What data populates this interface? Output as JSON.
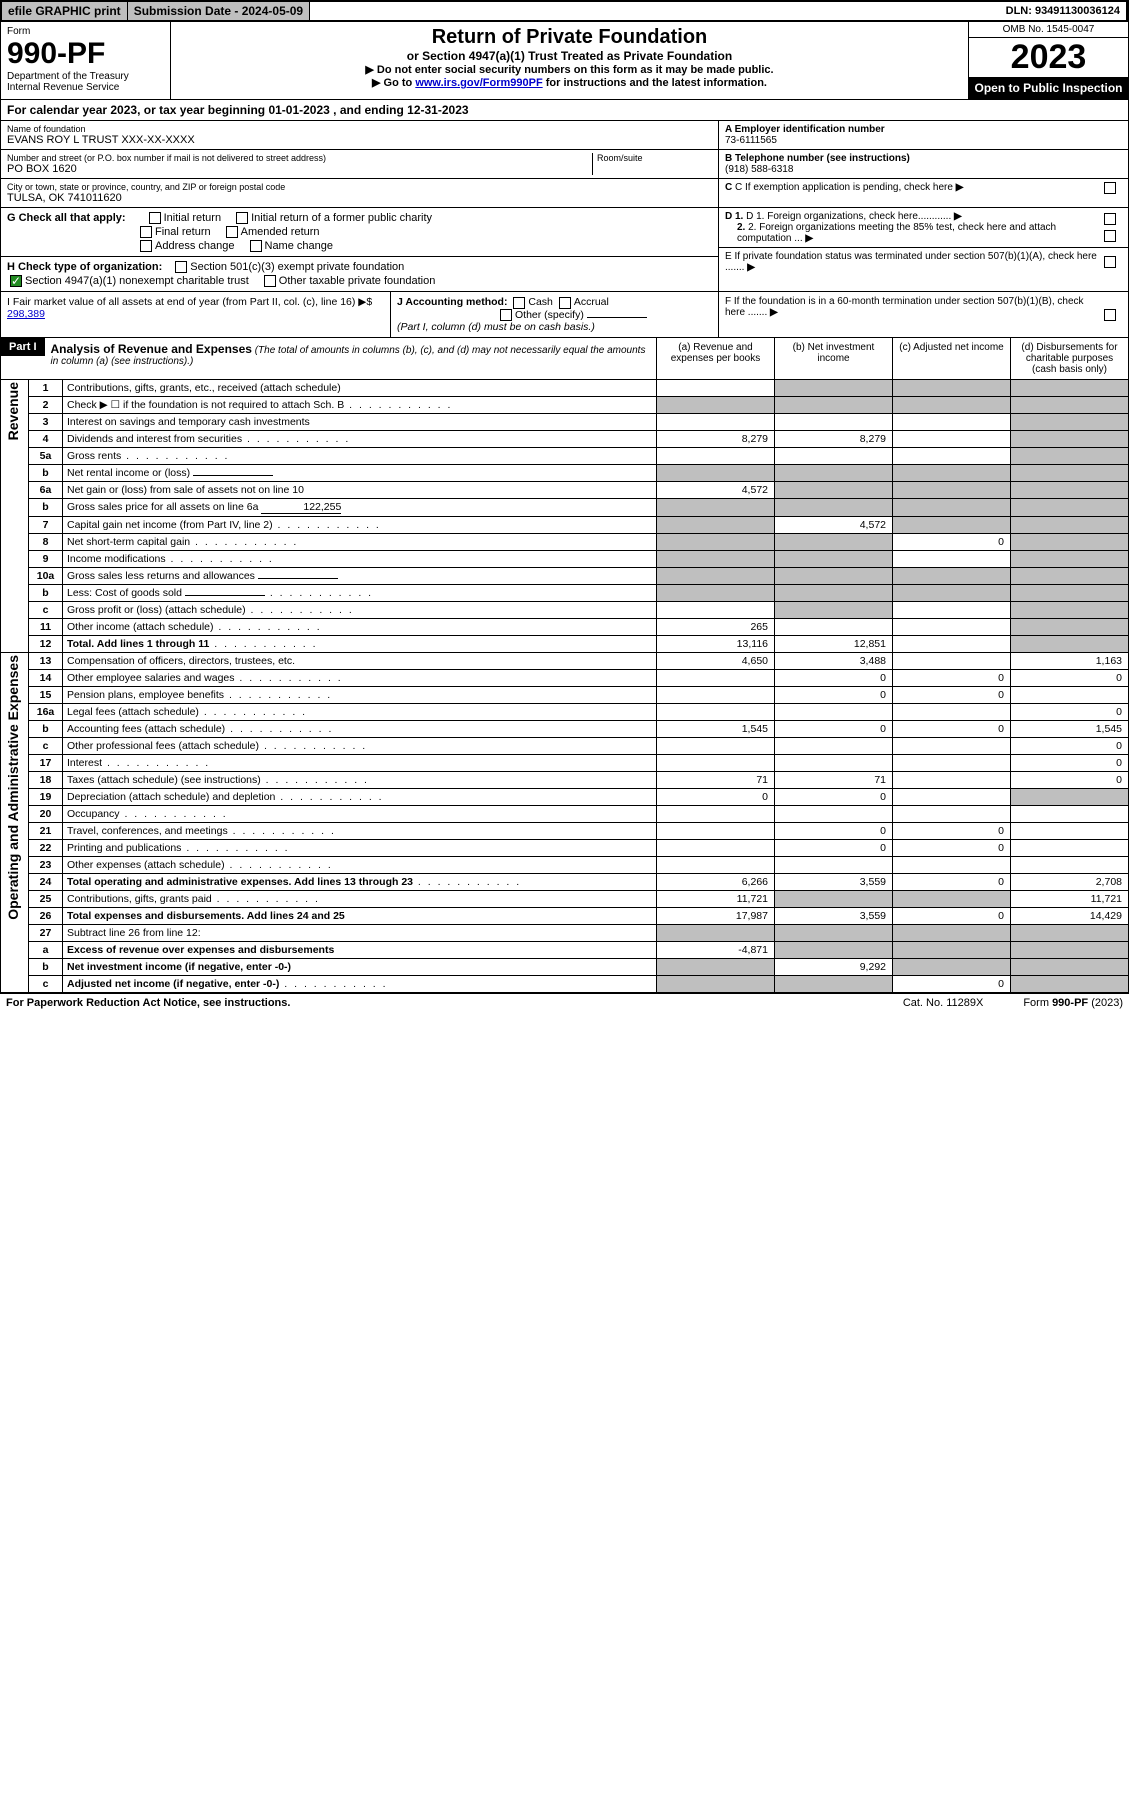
{
  "topbar": {
    "efile": "efile GRAPHIC print",
    "subdate_label": "Submission Date - 2024-05-09",
    "dln": "DLN: 93491130036124"
  },
  "header": {
    "form_word": "Form",
    "form_no": "990-PF",
    "dept": "Department of the Treasury",
    "irs": "Internal Revenue Service",
    "title": "Return of Private Foundation",
    "subtitle": "or Section 4947(a)(1) Trust Treated as Private Foundation",
    "note1": "▶ Do not enter social security numbers on this form as it may be made public.",
    "note2_pre": "▶ Go to ",
    "note2_link": "www.irs.gov/Form990PF",
    "note2_post": " for instructions and the latest information.",
    "omb": "OMB No. 1545-0047",
    "year": "2023",
    "open": "Open to Public Inspection"
  },
  "calyear": "For calendar year 2023, or tax year beginning 01-01-2023                           , and ending 12-31-2023",
  "info": {
    "name_label": "Name of foundation",
    "name": "EVANS ROY L TRUST XXX-XX-XXXX",
    "addr_label": "Number and street (or P.O. box number if mail is not delivered to street address)",
    "addr": "PO BOX 1620",
    "room_label": "Room/suite",
    "city_label": "City or town, state or province, country, and ZIP or foreign postal code",
    "city": "TULSA, OK  741011620",
    "a_label": "A Employer identification number",
    "a_val": "73-6111565",
    "b_label": "B Telephone number (see instructions)",
    "b_val": "(918) 588-6318",
    "c_label": "C If exemption application is pending, check here",
    "d1": "D 1. Foreign organizations, check here............",
    "d2": "2. Foreign organizations meeting the 85% test, check here and attach computation ...",
    "e": "E  If private foundation status was terminated under section 507(b)(1)(A), check here .......",
    "f": "F  If the foundation is in a 60-month termination under section 507(b)(1)(B), check here .......",
    "g_label": "G Check all that apply:",
    "g_initial": "Initial return",
    "g_initial_former": "Initial return of a former public charity",
    "g_final": "Final return",
    "g_amended": "Amended return",
    "g_addr": "Address change",
    "g_name": "Name change",
    "h_label": "H Check type of organization:",
    "h_501": "Section 501(c)(3) exempt private foundation",
    "h_4947": "Section 4947(a)(1) nonexempt charitable trust",
    "h_other": "Other taxable private foundation",
    "i_label": "I Fair market value of all assets at end of year (from Part II, col. (c), line 16) ▶$",
    "i_val": "298,389",
    "j_label": "J Accounting method:",
    "j_cash": "Cash",
    "j_accrual": "Accrual",
    "j_other": "Other (specify)",
    "j_note": "(Part I, column (d) must be on cash basis.)"
  },
  "part1": {
    "label": "Part I",
    "title": "Analysis of Revenue and Expenses",
    "title_note": " (The total of amounts in columns (b), (c), and (d) may not necessarily equal the amounts in column (a) (see instructions).)",
    "col_a": "(a)   Revenue and expenses per books",
    "col_b": "(b)   Net investment income",
    "col_c": "(c)   Adjusted net income",
    "col_d": "(d)   Disbursements for charitable purposes (cash basis only)"
  },
  "sections": {
    "revenue": "Revenue",
    "opex": "Operating and Administrative Expenses"
  },
  "lines": [
    {
      "n": "1",
      "desc": "Contributions, gifts, grants, etc., received (attach schedule)",
      "a": "",
      "b": null,
      "c": null,
      "d": null,
      "d_shade": true,
      "c_shade": true,
      "b_shade": true
    },
    {
      "n": "2",
      "desc": "Check ▶ ☐ if the foundation is not required to attach Sch. B",
      "dots": true,
      "a": null,
      "b": null,
      "c": null,
      "d": null,
      "a_shade": true,
      "b_shade": true,
      "c_shade": true,
      "d_shade": true
    },
    {
      "n": "3",
      "desc": "Interest on savings and temporary cash investments",
      "a": "",
      "b": "",
      "c": "",
      "d": null,
      "d_shade": true
    },
    {
      "n": "4",
      "desc": "Dividends and interest from securities",
      "dots": true,
      "a": "8,279",
      "b": "8,279",
      "c": "",
      "d": null,
      "d_shade": true
    },
    {
      "n": "5a",
      "desc": "Gross rents",
      "dots": true,
      "a": "",
      "b": "",
      "c": "",
      "d": null,
      "d_shade": true
    },
    {
      "n": "b",
      "desc": "Net rental income or (loss)",
      "inline_val": "",
      "a": null,
      "b": null,
      "c": null,
      "d": null,
      "a_shade": true,
      "b_shade": true,
      "c_shade": true,
      "d_shade": true
    },
    {
      "n": "6a",
      "desc": "Net gain or (loss) from sale of assets not on line 10",
      "a": "4,572",
      "b": null,
      "c": null,
      "d": null,
      "b_shade": true,
      "c_shade": true,
      "d_shade": true
    },
    {
      "n": "b",
      "desc": "Gross sales price for all assets on line 6a",
      "inline_val": "122,255",
      "a": null,
      "b": null,
      "c": null,
      "d": null,
      "a_shade": true,
      "b_shade": true,
      "c_shade": true,
      "d_shade": true
    },
    {
      "n": "7",
      "desc": "Capital gain net income (from Part IV, line 2)",
      "dots": true,
      "a": null,
      "b": "4,572",
      "c": null,
      "d": null,
      "a_shade": true,
      "c_shade": true,
      "d_shade": true
    },
    {
      "n": "8",
      "desc": "Net short-term capital gain",
      "dots": true,
      "a": null,
      "b": null,
      "c": "0",
      "d": null,
      "a_shade": true,
      "b_shade": true,
      "d_shade": true
    },
    {
      "n": "9",
      "desc": "Income modifications",
      "dots": true,
      "a": null,
      "b": null,
      "c": "",
      "d": null,
      "a_shade": true,
      "b_shade": true,
      "d_shade": true
    },
    {
      "n": "10a",
      "desc": "Gross sales less returns and allowances",
      "inline_val": "",
      "a": null,
      "b": null,
      "c": null,
      "d": null,
      "a_shade": true,
      "b_shade": true,
      "c_shade": true,
      "d_shade": true
    },
    {
      "n": "b",
      "desc": "Less: Cost of goods sold",
      "dots": true,
      "inline_val": "",
      "a": null,
      "b": null,
      "c": null,
      "d": null,
      "a_shade": true,
      "b_shade": true,
      "c_shade": true,
      "d_shade": true
    },
    {
      "n": "c",
      "desc": "Gross profit or (loss) (attach schedule)",
      "dots": true,
      "a": "",
      "b": null,
      "c": "",
      "d": null,
      "b_shade": true,
      "d_shade": true
    },
    {
      "n": "11",
      "desc": "Other income (attach schedule)",
      "dots": true,
      "a": "265",
      "b": "",
      "c": "",
      "d": null,
      "d_shade": true
    },
    {
      "n": "12",
      "desc": "Total. Add lines 1 through 11",
      "bold": true,
      "dots": true,
      "a": "13,116",
      "b": "12,851",
      "c": "",
      "d": null,
      "d_shade": true
    },
    {
      "n": "13",
      "desc": "Compensation of officers, directors, trustees, etc.",
      "a": "4,650",
      "b": "3,488",
      "c": "",
      "d": "1,163"
    },
    {
      "n": "14",
      "desc": "Other employee salaries and wages",
      "dots": true,
      "a": "",
      "b": "0",
      "c": "0",
      "d": "0"
    },
    {
      "n": "15",
      "desc": "Pension plans, employee benefits",
      "dots": true,
      "a": "",
      "b": "0",
      "c": "0",
      "d": ""
    },
    {
      "n": "16a",
      "desc": "Legal fees (attach schedule)",
      "dots": true,
      "a": "",
      "b": "",
      "c": "",
      "d": "0"
    },
    {
      "n": "b",
      "desc": "Accounting fees (attach schedule)",
      "dots": true,
      "a": "1,545",
      "b": "0",
      "c": "0",
      "d": "1,545"
    },
    {
      "n": "c",
      "desc": "Other professional fees (attach schedule)",
      "dots": true,
      "a": "",
      "b": "",
      "c": "",
      "d": "0"
    },
    {
      "n": "17",
      "desc": "Interest",
      "dots": true,
      "a": "",
      "b": "",
      "c": "",
      "d": "0"
    },
    {
      "n": "18",
      "desc": "Taxes (attach schedule) (see instructions)",
      "dots": true,
      "a": "71",
      "b": "71",
      "c": "",
      "d": "0"
    },
    {
      "n": "19",
      "desc": "Depreciation (attach schedule) and depletion",
      "dots": true,
      "a": "0",
      "b": "0",
      "c": "",
      "d": null,
      "d_shade": true
    },
    {
      "n": "20",
      "desc": "Occupancy",
      "dots": true,
      "a": "",
      "b": "",
      "c": "",
      "d": ""
    },
    {
      "n": "21",
      "desc": "Travel, conferences, and meetings",
      "dots": true,
      "a": "",
      "b": "0",
      "c": "0",
      "d": ""
    },
    {
      "n": "22",
      "desc": "Printing and publications",
      "dots": true,
      "a": "",
      "b": "0",
      "c": "0",
      "d": ""
    },
    {
      "n": "23",
      "desc": "Other expenses (attach schedule)",
      "dots": true,
      "a": "",
      "b": "",
      "c": "",
      "d": ""
    },
    {
      "n": "24",
      "desc": "Total operating and administrative expenses. Add lines 13 through 23",
      "bold": true,
      "dots": true,
      "a": "6,266",
      "b": "3,559",
      "c": "0",
      "d": "2,708"
    },
    {
      "n": "25",
      "desc": "Contributions, gifts, grants paid",
      "dots": true,
      "a": "11,721",
      "b": null,
      "c": null,
      "d": "11,721",
      "b_shade": true,
      "c_shade": true
    },
    {
      "n": "26",
      "desc": "Total expenses and disbursements. Add lines 24 and 25",
      "bold": true,
      "a": "17,987",
      "b": "3,559",
      "c": "0",
      "d": "14,429"
    },
    {
      "n": "27",
      "desc": "Subtract line 26 from line 12:",
      "a": null,
      "b": null,
      "c": null,
      "d": null,
      "a_shade": true,
      "b_shade": true,
      "c_shade": true,
      "d_shade": true
    },
    {
      "n": "a",
      "desc": "Excess of revenue over expenses and disbursements",
      "bold": true,
      "a": "-4,871",
      "b": null,
      "c": null,
      "d": null,
      "b_shade": true,
      "c_shade": true,
      "d_shade": true
    },
    {
      "n": "b",
      "desc": "Net investment income (if negative, enter -0-)",
      "bold": true,
      "a": null,
      "b": "9,292",
      "c": null,
      "d": null,
      "a_shade": true,
      "c_shade": true,
      "d_shade": true
    },
    {
      "n": "c",
      "desc": "Adjusted net income (if negative, enter -0-)",
      "bold": true,
      "dots": true,
      "a": null,
      "b": null,
      "c": "0",
      "d": null,
      "a_shade": true,
      "b_shade": true,
      "d_shade": true
    }
  ],
  "footer": {
    "left": "For Paperwork Reduction Act Notice, see instructions.",
    "mid": "Cat. No. 11289X",
    "right": "Form 990-PF (2023)"
  }
}
